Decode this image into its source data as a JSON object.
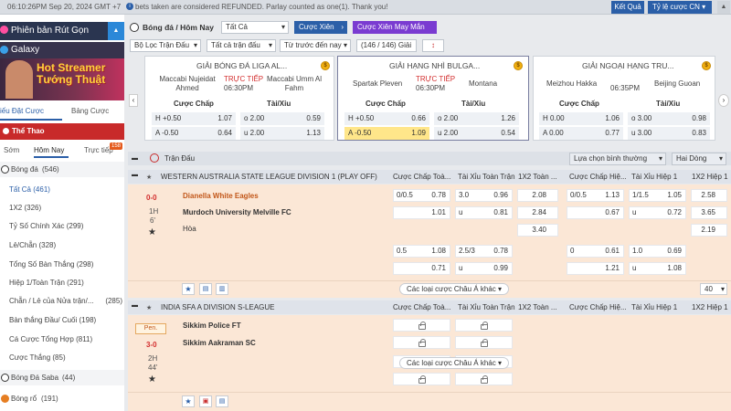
{
  "topbar": {
    "clock": "06:10:26PM Sep 20, 2024 GMT +7",
    "marquee": "bets taken are considered REFUNDED. Parlay counted as one(1). Thank you!",
    "results_button": "Kết Quả",
    "odds_format": "Tỷ lệ cược CN"
  },
  "sidebar": {
    "promo1": "Phiên bản Rút Gọn",
    "promo2": "Galaxy",
    "banner_line1": "Hot Streamer",
    "banner_line2": "Tướng Thuật",
    "tabs": [
      "iếu Đặt Cược",
      "Bảng Cược"
    ],
    "sports_header": "Thể Thao",
    "subtabs": [
      "Sớm",
      "Hôm Nay",
      "Trực tiếp"
    ],
    "live_badge": "158",
    "sports": [
      {
        "label": "Bóng đá",
        "count": "(546)"
      },
      {
        "label": "Bóng Đá Saba",
        "count": "(44)"
      },
      {
        "label": "Bóng rổ",
        "count": "(191)"
      }
    ],
    "submenu": [
      {
        "label": "Tất Cả",
        "count": "(461)",
        "active": true
      },
      {
        "label": "1X2",
        "count": "(326)"
      },
      {
        "label": "Tỷ Số Chính Xác",
        "count": "(299)"
      },
      {
        "label": "Lẻ/Chẵn",
        "count": "(328)"
      },
      {
        "label": "Tổng Số Bàn Thắng",
        "count": "(298)"
      },
      {
        "label": "Hiệp 1/Toàn Trận",
        "count": "(291)"
      },
      {
        "label": "Chẵn / Lẻ của Nửa trận/...",
        "count": "(285)"
      },
      {
        "label": "Bàn thắng Đầu/ Cuối",
        "count": "(198)"
      },
      {
        "label": "Cá Cược Tổng Hợp",
        "count": "(811)"
      },
      {
        "label": "Cược Thắng",
        "count": "(85)"
      }
    ]
  },
  "filters": {
    "breadcrumb": "Bóng đá / Hôm Nay",
    "select_all": "Tất Cả",
    "parlay": "Cược Xiên",
    "lucky_parlay": "Cược Xiên May Mắn",
    "filter_match": "Bộ Lọc Trận Đấu",
    "all_matches": "Tất cả trận đấu",
    "sort": "Từ trước đến nay",
    "count": "(146 / 146) Giải"
  },
  "cards": [
    {
      "league": "GIẢI BÓNG ĐÁ LIGA AL...",
      "home": "Maccabi Nujeidat Ahmed",
      "away": "Maccabi Umm Al Fahm",
      "status": "TRỰC TIẾP",
      "time": "06:30PM",
      "h_hcp": "H +0.50",
      "h_hcp_odd": "1.07",
      "h_ou": "o 2.00",
      "h_ou_odd": "0.59",
      "a_hcp": "A -0.50",
      "a_hcp_odd": "0.64",
      "a_ou": "u 2.00",
      "a_ou_odd": "1.13"
    },
    {
      "league": "GIẢI HẠNG NHÌ BULGA...",
      "home": "Spartak Pleven",
      "away": "Montana",
      "status": "TRỰC TIẾP",
      "time": "06:30PM",
      "h_hcp": "H +0.50",
      "h_hcp_odd": "0.66",
      "h_ou": "o 2.00",
      "h_ou_odd": "1.26",
      "a_hcp": "A -0.50",
      "a_hcp_odd": "1.09",
      "a_ou": "u 2.00",
      "a_ou_odd": "0.54"
    },
    {
      "league": "GIẢI NGOẠI HẠNG TRU...",
      "home": "Meizhou Hakka",
      "away": "Beijing Guoan",
      "status": "",
      "time": "06:35PM",
      "h_hcp": "H 0.00",
      "h_hcp_odd": "1.06",
      "h_ou": "o 3.00",
      "h_ou_odd": "0.98",
      "a_hcp": "A 0.00",
      "a_hcp_odd": "0.77",
      "a_ou": "u 3.00",
      "a_ou_odd": "0.83"
    }
  ],
  "card_headers": {
    "hcp": "Cược Chấp",
    "ou": "Tài/Xỉu"
  },
  "section": {
    "title": "Trận Đấu",
    "odds_select": "Lựa chọn bình thường",
    "lines": "Hai Dòng"
  },
  "columns": [
    "Cược Chấp Toà...",
    "Tài Xỉu Toàn Trận",
    "1X2 Toàn ...",
    "Cược Chấp Hiệ...",
    "Tài Xỉu Hiệp 1",
    "1X2 Hiệp 1"
  ],
  "league1": {
    "name": "WESTERN AUSTRALIA STATE LEAGUE DIVISION 1 (PLAY OFF)",
    "score": "0-0",
    "period": "1H",
    "minute": "6'",
    "home": "Dianella White Eagles",
    "away": "Murdoch University Melville FC",
    "draw": "Hòa",
    "row1": {
      "hcp_line": "0/0.5",
      "hcp_odd": "0.78",
      "ou_line": "3.0",
      "ou_odd": "0.96",
      "x12": "2.08",
      "h1_hcp_line": "0/0.5",
      "h1_hcp_odd": "1.13",
      "h1_ou_line": "1/1.5",
      "h1_ou_odd": "1.05",
      "h1_x12": "2.58"
    },
    "row2": {
      "hcp_odd": "1.01",
      "ou_line": "u",
      "ou_odd": "0.81",
      "x12": "2.84",
      "h1_hcp_odd": "0.67",
      "h1_ou_line": "u",
      "h1_ou_odd": "0.72",
      "h1_x12": "3.65"
    },
    "row3": {
      "x12": "3.40",
      "h1_x12": "2.19"
    },
    "row4": {
      "hcp_line": "0.5",
      "hcp_odd": "1.08",
      "ou_line": "2.5/3",
      "ou_odd": "0.78",
      "h1_hcp_line": "0",
      "h1_hcp_odd": "0.61",
      "h1_ou_line": "1.0",
      "h1_ou_odd": "0.69"
    },
    "row5": {
      "hcp_odd": "0.71",
      "ou_line": "u",
      "ou_odd": "0.99",
      "h1_hcp_odd": "1.21",
      "h1_ou_line": "u",
      "h1_ou_odd": "1.08"
    },
    "more": "Các loại cược Châu Á khác",
    "page_count": "40"
  },
  "league2": {
    "name": "INDIA SFA A DIVISION S-LEAGUE",
    "badge": "Pen.",
    "score": "3-0",
    "period": "2H",
    "minute": "44'",
    "home": "Sikkim Police FT",
    "away": "Sikkim Aakraman SC",
    "more": "Các loại cược Châu Á khác"
  },
  "colors": {
    "accent": "#2b5fa8",
    "live": "#d32f2f",
    "highlight": "#ffe68a",
    "match_bg": "#fbe7d6"
  }
}
